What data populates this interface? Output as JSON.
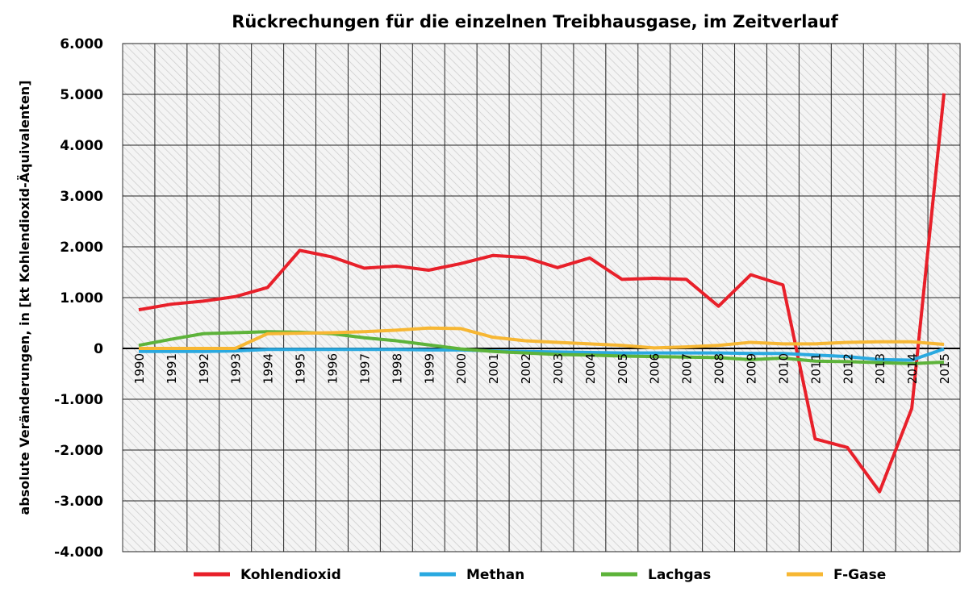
{
  "chart_data": {
    "type": "line",
    "title": "Rückrechungen für die einzelnen Treibhausgase, im Zeitverlauf",
    "xlabel": "",
    "ylabel": "absolute Veränderungen, in [kt Kohlendioxid-Äquivalenten]",
    "ylim": [
      -4000,
      6000
    ],
    "yticks": [
      6000,
      5000,
      4000,
      3000,
      2000,
      1000,
      0,
      -1000,
      -2000,
      -3000,
      -4000
    ],
    "ytick_labels": [
      "6.000",
      "5.000",
      "4.000",
      "3.000",
      "2.000",
      "1.000",
      "0",
      "-1.000",
      "-2.000",
      "-3.000",
      "-4.000"
    ],
    "grid": true,
    "legend": "bottom",
    "x": [
      "1990",
      "1991",
      "1992",
      "1993",
      "1994",
      "1995",
      "1996",
      "1997",
      "1998",
      "1999",
      "2000",
      "2001",
      "2002",
      "2003",
      "2004",
      "2005",
      "2006",
      "2007",
      "2008",
      "2009",
      "2010",
      "2011",
      "2012",
      "2013",
      "2014",
      "2015"
    ],
    "series": [
      {
        "name": "Kohlendioxid",
        "color": "#e8202a",
        "values": [
          760,
          870,
          930,
          1020,
          1200,
          1930,
          1800,
          1580,
          1620,
          1540,
          1670,
          1830,
          1790,
          1590,
          1780,
          1360,
          1380,
          1360,
          830,
          1450,
          1250,
          -1780,
          -1950,
          -2820,
          -1180,
          5020
        ]
      },
      {
        "name": "Methan",
        "color": "#2aa9e0",
        "values": [
          -60,
          -60,
          -60,
          -50,
          -20,
          -20,
          -20,
          -20,
          -20,
          -30,
          -30,
          -50,
          -60,
          -70,
          -80,
          -90,
          -90,
          -90,
          -90,
          -100,
          -100,
          -130,
          -160,
          -220,
          -230,
          -10
        ]
      },
      {
        "name": "Lachgas",
        "color": "#5db33a",
        "values": [
          60,
          180,
          290,
          310,
          330,
          320,
          290,
          210,
          150,
          70,
          -10,
          -60,
          -90,
          -120,
          -130,
          -150,
          -160,
          -170,
          -180,
          -220,
          -190,
          -250,
          -260,
          -280,
          -300,
          -270
        ]
      },
      {
        "name": "F-Gase",
        "color": "#f7b733",
        "values": [
          0,
          0,
          0,
          0,
          290,
          300,
          310,
          330,
          360,
          400,
          390,
          220,
          150,
          120,
          90,
          60,
          10,
          30,
          60,
          120,
          90,
          90,
          120,
          130,
          130,
          80
        ]
      }
    ]
  }
}
